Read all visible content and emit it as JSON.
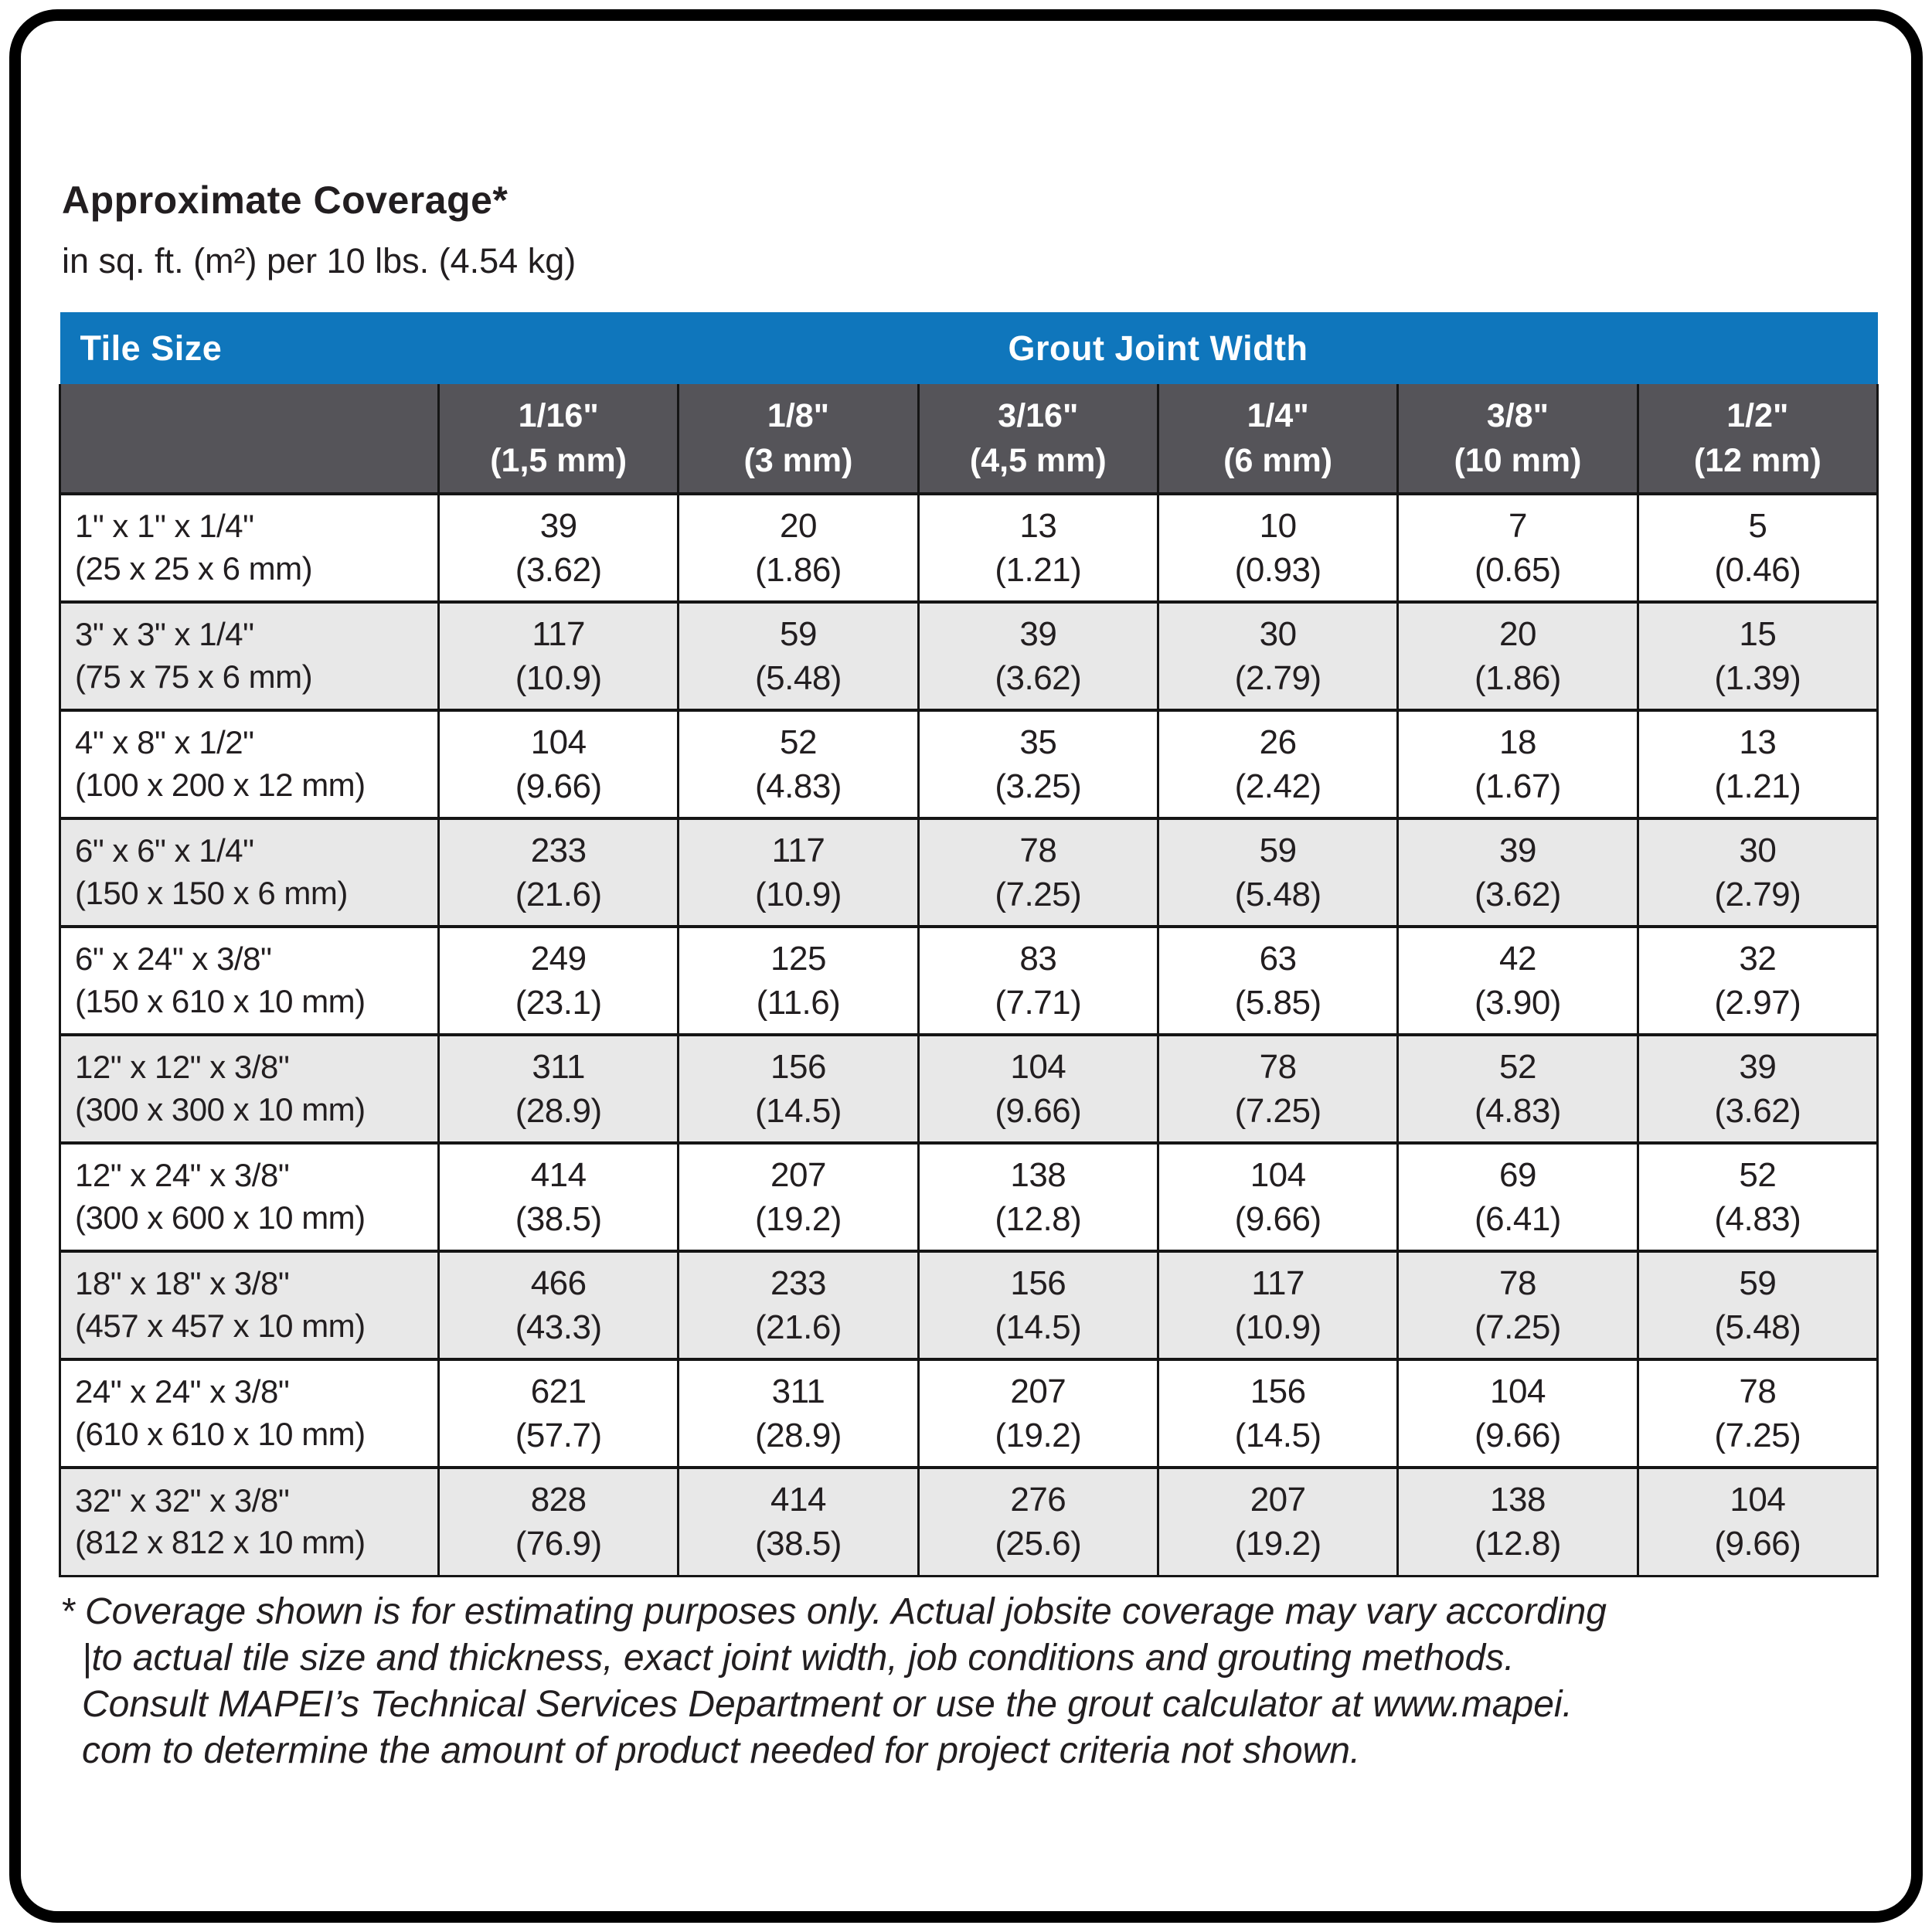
{
  "page": {
    "title": "Approximate Coverage*",
    "subtitle": "in sq. ft. (m²) per 10 lbs. (4.54 kg)"
  },
  "colors": {
    "header_blue": "#0f76bc",
    "header_gray": "#555459",
    "row_alt_gray": "#e8e8e8",
    "text": "#221e20"
  },
  "table": {
    "header": {
      "tile_size": "Tile Size",
      "grout_joint_width": "Grout Joint Width"
    },
    "columns": [
      {
        "inch": "1/16\"",
        "mm": "(1,5 mm)"
      },
      {
        "inch": "1/8\"",
        "mm": "(3 mm)"
      },
      {
        "inch": "3/16\"",
        "mm": "(4,5 mm)"
      },
      {
        "inch": "1/4\"",
        "mm": "(6 mm)"
      },
      {
        "inch": "3/8\"",
        "mm": "(10 mm)"
      },
      {
        "inch": "1/2\"",
        "mm": "(12 mm)"
      }
    ],
    "rows": [
      {
        "size_in": "1\" x 1\" x 1/4\"",
        "size_mm": "(25 x 25 x 6 mm)",
        "values": [
          {
            "sqft": "39",
            "m2": "(3.62)"
          },
          {
            "sqft": "20",
            "m2": "(1.86)"
          },
          {
            "sqft": "13",
            "m2": "(1.21)"
          },
          {
            "sqft": "10",
            "m2": "(0.93)"
          },
          {
            "sqft": "7",
            "m2": "(0.65)"
          },
          {
            "sqft": "5",
            "m2": "(0.46)"
          }
        ]
      },
      {
        "size_in": "3\" x 3\" x 1/4\"",
        "size_mm": "(75 x 75 x 6 mm)",
        "values": [
          {
            "sqft": "117",
            "m2": "(10.9)"
          },
          {
            "sqft": "59",
            "m2": "(5.48)"
          },
          {
            "sqft": "39",
            "m2": "(3.62)"
          },
          {
            "sqft": "30",
            "m2": "(2.79)"
          },
          {
            "sqft": "20",
            "m2": "(1.86)"
          },
          {
            "sqft": "15",
            "m2": "(1.39)"
          }
        ]
      },
      {
        "size_in": "4\" x 8\" x 1/2\"",
        "size_mm": "(100 x 200 x 12 mm)",
        "values": [
          {
            "sqft": "104",
            "m2": "(9.66)"
          },
          {
            "sqft": "52",
            "m2": "(4.83)"
          },
          {
            "sqft": "35",
            "m2": "(3.25)"
          },
          {
            "sqft": "26",
            "m2": "(2.42)"
          },
          {
            "sqft": "18",
            "m2": "(1.67)"
          },
          {
            "sqft": "13",
            "m2": "(1.21)"
          }
        ]
      },
      {
        "size_in": "6\" x 6\" x 1/4\"",
        "size_mm": "(150 x 150 x 6 mm)",
        "values": [
          {
            "sqft": "233",
            "m2": "(21.6)"
          },
          {
            "sqft": "117",
            "m2": "(10.9)"
          },
          {
            "sqft": "78",
            "m2": "(7.25)"
          },
          {
            "sqft": "59",
            "m2": "(5.48)"
          },
          {
            "sqft": "39",
            "m2": "(3.62)"
          },
          {
            "sqft": "30",
            "m2": "(2.79)"
          }
        ]
      },
      {
        "size_in": "6\" x 24\" x 3/8\"",
        "size_mm": "(150 x 610 x 10 mm)",
        "values": [
          {
            "sqft": "249",
            "m2": "(23.1)"
          },
          {
            "sqft": "125",
            "m2": "(11.6)"
          },
          {
            "sqft": "83",
            "m2": "(7.71)"
          },
          {
            "sqft": "63",
            "m2": "(5.85)"
          },
          {
            "sqft": "42",
            "m2": "(3.90)"
          },
          {
            "sqft": "32",
            "m2": "(2.97)"
          }
        ]
      },
      {
        "size_in": "12\" x 12\" x 3/8\"",
        "size_mm": "(300 x 300 x 10 mm)",
        "values": [
          {
            "sqft": "311",
            "m2": "(28.9)"
          },
          {
            "sqft": "156",
            "m2": "(14.5)"
          },
          {
            "sqft": "104",
            "m2": "(9.66)"
          },
          {
            "sqft": "78",
            "m2": "(7.25)"
          },
          {
            "sqft": "52",
            "m2": "(4.83)"
          },
          {
            "sqft": "39",
            "m2": "(3.62)"
          }
        ]
      },
      {
        "size_in": "12\" x 24\" x 3/8\"",
        "size_mm": "(300 x 600 x 10 mm)",
        "values": [
          {
            "sqft": "414",
            "m2": "(38.5)"
          },
          {
            "sqft": "207",
            "m2": "(19.2)"
          },
          {
            "sqft": "138",
            "m2": "(12.8)"
          },
          {
            "sqft": "104",
            "m2": "(9.66)"
          },
          {
            "sqft": "69",
            "m2": "(6.41)"
          },
          {
            "sqft": "52",
            "m2": "(4.83)"
          }
        ]
      },
      {
        "size_in": "18\" x 18\" x 3/8\"",
        "size_mm": "(457 x 457 x 10 mm)",
        "values": [
          {
            "sqft": "466",
            "m2": "(43.3)"
          },
          {
            "sqft": "233",
            "m2": "(21.6)"
          },
          {
            "sqft": "156",
            "m2": "(14.5)"
          },
          {
            "sqft": "117",
            "m2": "(10.9)"
          },
          {
            "sqft": "78",
            "m2": "(7.25)"
          },
          {
            "sqft": "59",
            "m2": "(5.48)"
          }
        ]
      },
      {
        "size_in": "24\" x 24\" x 3/8\"",
        "size_mm": "(610 x 610 x 10 mm)",
        "values": [
          {
            "sqft": "621",
            "m2": "(57.7)"
          },
          {
            "sqft": "311",
            "m2": "(28.9)"
          },
          {
            "sqft": "207",
            "m2": "(19.2)"
          },
          {
            "sqft": "156",
            "m2": "(14.5)"
          },
          {
            "sqft": "104",
            "m2": "(9.66)"
          },
          {
            "sqft": "78",
            "m2": "(7.25)"
          }
        ]
      },
      {
        "size_in": "32\" x 32\" x 3/8\"",
        "size_mm": "(812 x 812 x 10 mm)",
        "values": [
          {
            "sqft": "828",
            "m2": "(76.9)"
          },
          {
            "sqft": "414",
            "m2": "(38.5)"
          },
          {
            "sqft": "276",
            "m2": "(25.6)"
          },
          {
            "sqft": "207",
            "m2": "(19.2)"
          },
          {
            "sqft": "138",
            "m2": "(12.8)"
          },
          {
            "sqft": "104",
            "m2": "(9.66)"
          }
        ]
      }
    ]
  },
  "footnote": {
    "lines": [
      "* Coverage shown is for estimating purposes only. Actual jobsite coverage may vary according",
      "|to actual tile size and thickness, exact joint width, job conditions and grouting methods.",
      "Consult MAPEI’s Technical Services Department or use the grout calculator at www.mapei.",
      "com to determine the amount of product needed for project criteria not shown."
    ]
  }
}
